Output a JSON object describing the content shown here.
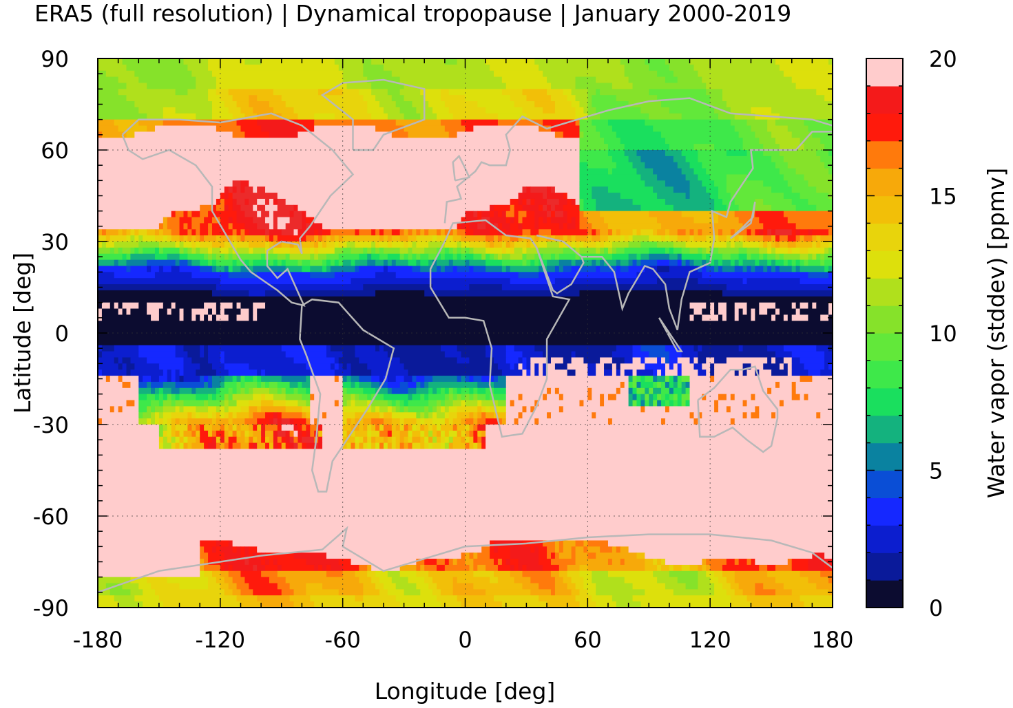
{
  "title": "ERA5 (full resolution) | Dynamical tropopause | January 2000-2019",
  "chart_data": {
    "type": "heatmap",
    "title": "ERA5 (full resolution) | Dynamical tropopause | January 2000-2019",
    "xlabel": "Longitude [deg]",
    "ylabel": "Latitude [deg]",
    "xlim": [
      -180,
      180
    ],
    "ylim": [
      -90,
      90
    ],
    "x_ticks": [
      "-180",
      "-120",
      "-60",
      "0",
      "60",
      "120",
      "180"
    ],
    "y_ticks": [
      "90",
      "60",
      "30",
      "0",
      "-30",
      "-60",
      "-90"
    ],
    "x_tick_values": [
      -180,
      -120,
      -60,
      0,
      60,
      120,
      180
    ],
    "y_tick_values": [
      90,
      60,
      30,
      0,
      -30,
      -60,
      -90
    ],
    "grid": true,
    "coastlines": true,
    "colorbar": {
      "label": "Water vapor (stddev) [ppmv]",
      "range": [
        0,
        20
      ],
      "ticks": [
        "0",
        "5",
        "10",
        "15",
        "20"
      ],
      "tick_values": [
        0,
        5,
        10,
        15,
        20
      ],
      "levels": 20,
      "colors": [
        "#0c0c30",
        "#0a1a9a",
        "#0c1ecf",
        "#1528ff",
        "#0a4ed6",
        "#0a82a0",
        "#14b27e",
        "#1adf5e",
        "#3ee84a",
        "#62e83a",
        "#86e22a",
        "#b0e01c",
        "#dde00c",
        "#e8d40c",
        "#f2bf08",
        "#f7a90a",
        "#ff7a0c",
        "#ff1a0c",
        "#f41a1a",
        "#ec2a2a",
        "#f27a7a",
        "#ffcccc"
      ]
    },
    "zonal_pattern": {
      "latitude_bands": [
        90,
        80,
        70,
        60,
        50,
        40,
        30,
        20,
        10,
        0,
        -10,
        -20,
        -30,
        -40,
        -50,
        -60,
        -70,
        -80,
        -90
      ],
      "description_values": {
        "north_pole_cap": 12,
        "northern_midlatitudes": 20,
        "subtropical_jet": 8,
        "tropics": 1,
        "southern_subtropics": 4,
        "southern_midlatitudes": 20,
        "antarctic": 15
      }
    }
  }
}
